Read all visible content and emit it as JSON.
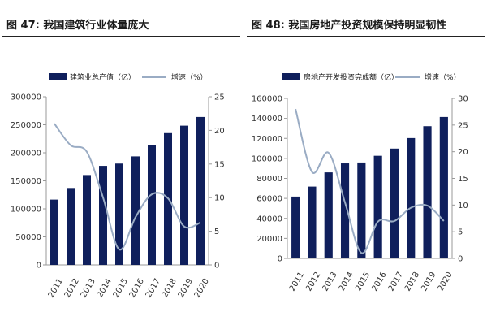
{
  "chart_data": [
    {
      "type": "bar",
      "figure_label": "图 47:",
      "title": "我国建筑行业体量庞大",
      "categories": [
        "2011",
        "2012",
        "2013",
        "2014",
        "2015",
        "2016",
        "2017",
        "2018",
        "2019",
        "2020"
      ],
      "series": [
        {
          "name": "建筑业总产值（亿）",
          "type": "bar",
          "axis": "left",
          "values": [
            116500,
            137200,
            160300,
            176700,
            180800,
            193600,
            213900,
            235100,
            248400,
            263900
          ]
        },
        {
          "name": "增速（%）",
          "type": "line",
          "axis": "right",
          "values": [
            21,
            17.8,
            16.8,
            10,
            2.3,
            7.1,
            10.5,
            9.9,
            5.7,
            6.3
          ]
        }
      ],
      "y_left": {
        "min": 0,
        "max": 300000,
        "ticks": [
          0,
          50000,
          100000,
          150000,
          200000,
          250000,
          300000
        ],
        "tick_labels": [
          "0",
          "50000",
          "100000",
          "150000",
          "200000",
          "250000",
          "300000"
        ]
      },
      "y_right": {
        "min": 0,
        "max": 25,
        "ticks": [
          0,
          5,
          10,
          15,
          20,
          25
        ],
        "tick_labels": [
          "0",
          "5",
          "10",
          "15",
          "20",
          "25"
        ]
      },
      "colors": {
        "bar": "#0f1f5c",
        "line": "#9aacc4"
      },
      "legend_position": "top"
    },
    {
      "type": "bar",
      "figure_label": "图 48:",
      "title": "我国房地产投资规模保持明显韧性",
      "categories": [
        "2011",
        "2012",
        "2013",
        "2014",
        "2015",
        "2016",
        "2017",
        "2018",
        "2019",
        "2020"
      ],
      "series": [
        {
          "name": "房地产开发投资完成额（亿）",
          "type": "bar",
          "axis": "left",
          "values": [
            61800,
            71800,
            86000,
            95000,
            95900,
            102600,
            109800,
            120300,
            132200,
            141400
          ]
        },
        {
          "name": "增速（%）",
          "type": "line",
          "axis": "right",
          "values": [
            28,
            16.2,
            19.8,
            10.5,
            1,
            6.9,
            7,
            9.5,
            9.9,
            7
          ]
        }
      ],
      "y_left": {
        "min": 0,
        "max": 160000,
        "ticks": [
          0,
          20000,
          40000,
          60000,
          80000,
          100000,
          120000,
          140000,
          160000
        ],
        "tick_labels": [
          "0",
          "20000",
          "40000",
          "60000",
          "80000",
          "100000",
          "120000",
          "140000",
          "160000"
        ]
      },
      "y_right": {
        "min": 0,
        "max": 30,
        "ticks": [
          0,
          5,
          10,
          15,
          20,
          25,
          30
        ],
        "tick_labels": [
          "0",
          "5",
          "10",
          "15",
          "20",
          "25",
          "30"
        ]
      },
      "colors": {
        "bar": "#0f1f5c",
        "line": "#9aacc4"
      },
      "legend_position": "top"
    }
  ]
}
